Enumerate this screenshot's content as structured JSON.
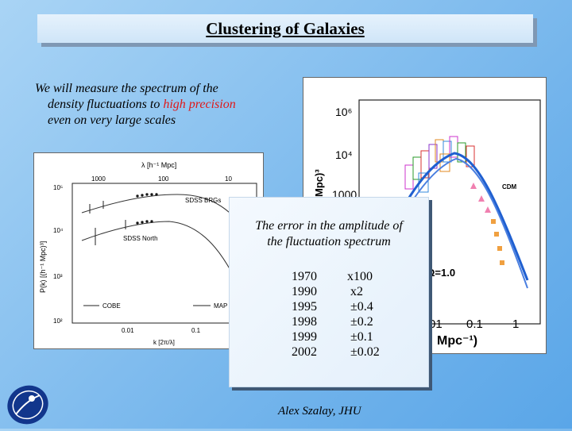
{
  "title": "Clustering of Galaxies",
  "intro": {
    "line1": "We will measure the spectrum of the",
    "line2_pre": "density fluctuations to ",
    "line2_hl": "high precision",
    "line3": "even on very large scales"
  },
  "callout": {
    "line1": "The error in the amplitude of",
    "line2": "the fluctuation spectrum",
    "years": [
      "1970",
      "1990",
      "1995",
      "1998",
      "1999",
      "2002"
    ],
    "factors": [
      "x100",
      "x2",
      "±0.4",
      "±0.2",
      "±0.1",
      "±0.02"
    ]
  },
  "left_plot": {
    "top_axis_label": "λ  [h⁻¹ Mpc]",
    "top_ticks": [
      "1000",
      "100",
      "10"
    ],
    "y_label": "P(k)  [(h⁻¹ Mpc)³]",
    "y_ticks": [
      "10⁵",
      "10⁴",
      "10³",
      "10²"
    ],
    "x_ticks": [
      "0.01",
      "0.1"
    ],
    "x_label": "k  [2π/λ]",
    "curve_labels": [
      "SDSS BRGs",
      "SDSS North"
    ],
    "arrow_labels": [
      "COBE",
      "MAP"
    ]
  },
  "right_plot": {
    "y_label": "Mpc)³",
    "y_ticks": [
      "10⁶",
      "10⁴",
      "1000"
    ],
    "x_ticks": [
      "01",
      "0.1",
      "1"
    ],
    "x_label": "Mpc⁻¹)",
    "model_label": "CDM",
    "omega_label": "Ω=1.0"
  },
  "footer": {
    "author": "Alex Szalay, JHU"
  },
  "colors": {
    "accent": "#e01818",
    "curve_blue": "#1f5fd0"
  }
}
